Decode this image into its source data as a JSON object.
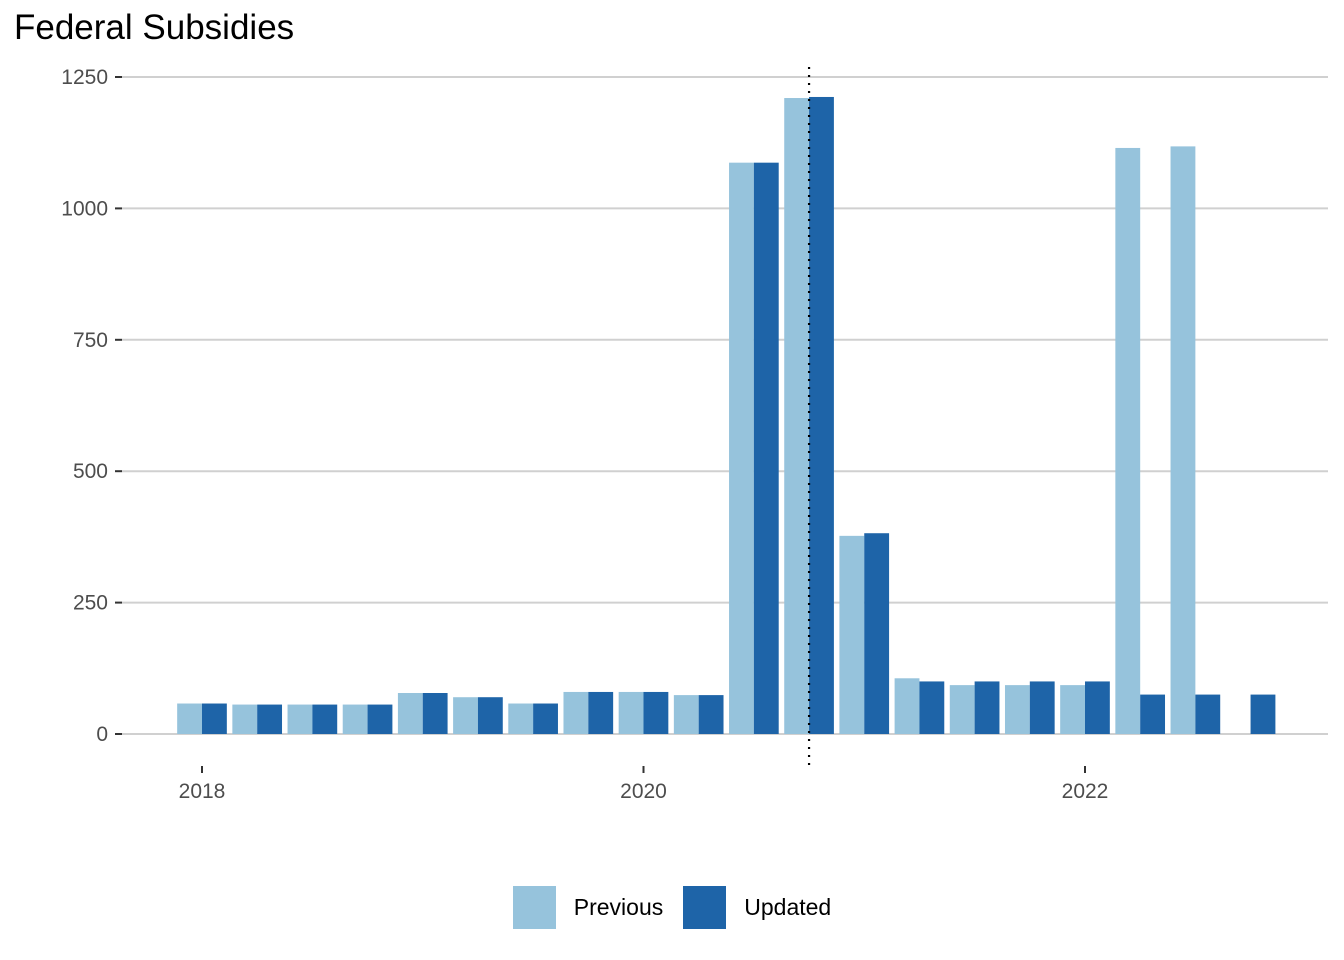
{
  "chart_data": {
    "type": "bar",
    "title": "Federal Subsidies",
    "xlabel": "",
    "ylabel": "",
    "ylim": [
      0,
      1250
    ],
    "y_ticks": [
      "0",
      "250",
      "500",
      "750",
      "1000",
      "1250"
    ],
    "x_ticks": [
      "2018",
      "2020",
      "2022"
    ],
    "grid": true,
    "legend_position": "bottom",
    "reference_line": {
      "x": "2020-10-01",
      "style": "dotted"
    },
    "categories": [
      "2018-01",
      "2018-04",
      "2018-07",
      "2018-10",
      "2019-01",
      "2019-04",
      "2019-07",
      "2019-10",
      "2020-01",
      "2020-04",
      "2020-07",
      "2020-10",
      "2021-01",
      "2021-04",
      "2021-07",
      "2021-10",
      "2022-01",
      "2022-04",
      "2022-07",
      "2022-10"
    ],
    "series": [
      {
        "name": "Previous",
        "color": "#96c3dc",
        "values": [
          58,
          56,
          56,
          56,
          78,
          70,
          58,
          80,
          80,
          74,
          1087,
          1210,
          377,
          106,
          93,
          93,
          93,
          1115,
          1118,
          null
        ]
      },
      {
        "name": "Updated",
        "color": "#1e64a8",
        "values": [
          58,
          56,
          56,
          56,
          78,
          70,
          58,
          80,
          80,
          74,
          1087,
          1212,
          382,
          100,
          100,
          100,
          100,
          75,
          75,
          75
        ]
      }
    ]
  }
}
